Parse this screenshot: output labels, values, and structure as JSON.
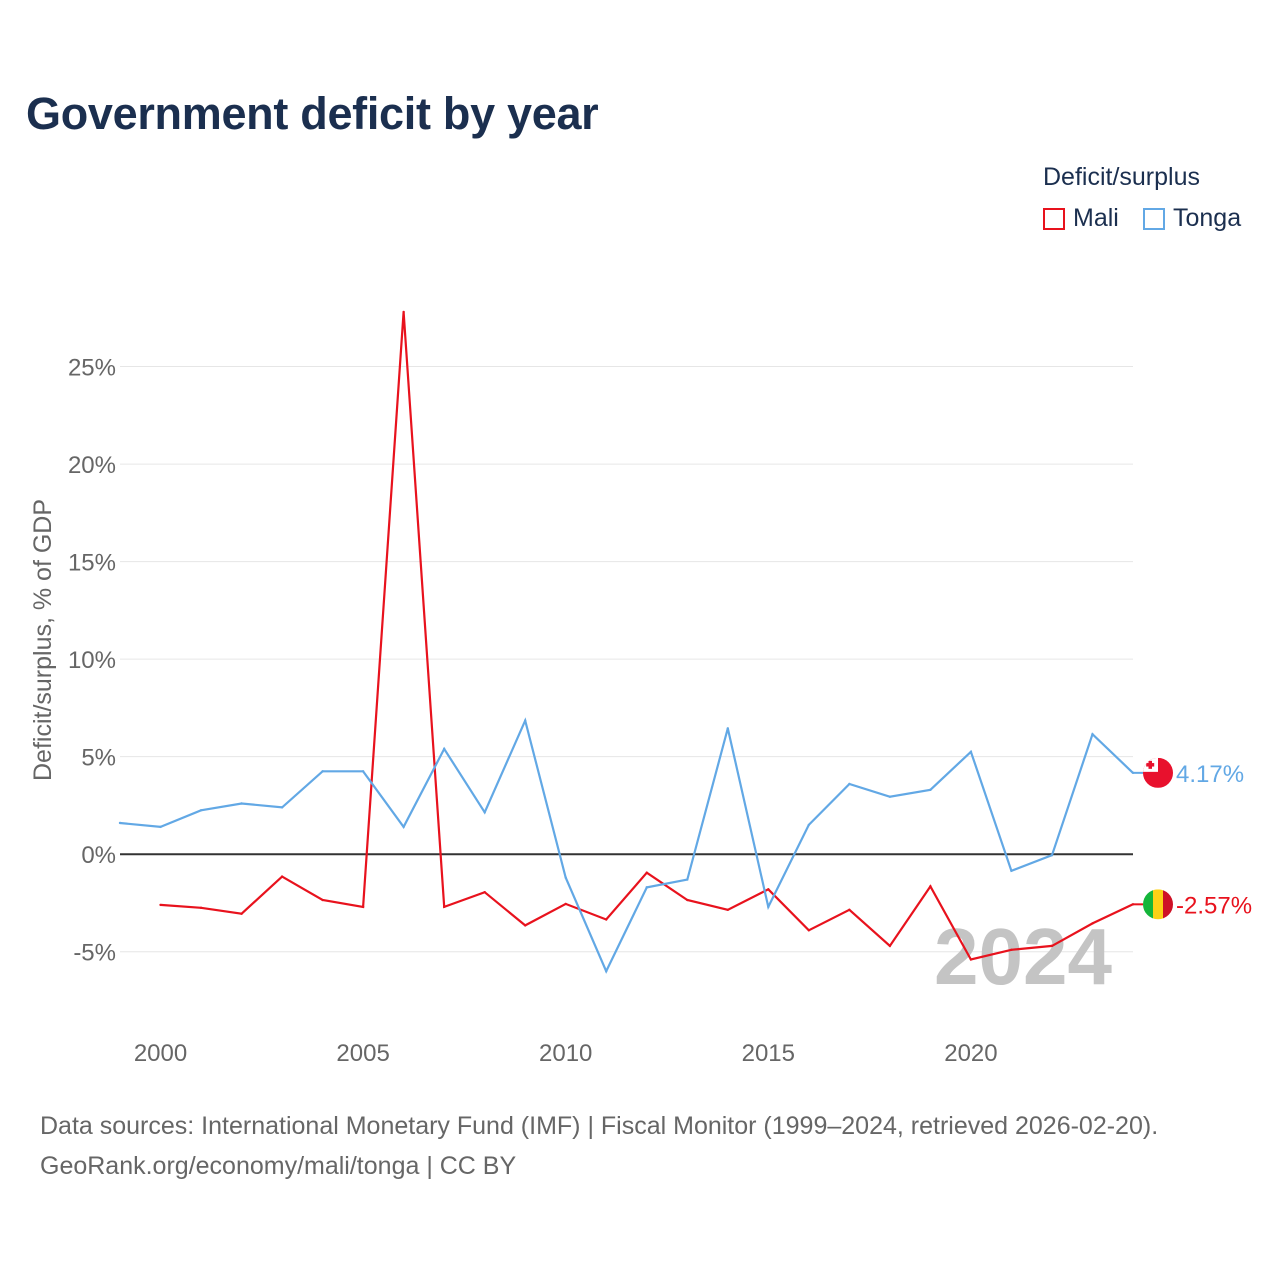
{
  "chart_data": {
    "type": "line",
    "title": "Government deficit by year",
    "ylabel": "Deficit/surplus, % of GDP",
    "xlabel": "",
    "xlim": [
      1999,
      2024
    ],
    "ylim": [
      -8.5,
      30
    ],
    "x_ticks": [
      2000,
      2005,
      2010,
      2015,
      2020
    ],
    "y_ticks": [
      -5,
      0,
      5,
      10,
      15,
      20,
      25
    ],
    "y_tick_labels": [
      "-5%",
      "0%",
      "5%",
      "10%",
      "15%",
      "20%",
      "25%"
    ],
    "x_tick_labels": [
      "2000",
      "2005",
      "2010",
      "2015",
      "2020"
    ],
    "legend_title": "Deficit/surplus",
    "legend_position": "top-right",
    "watermark_year": "2024",
    "series": [
      {
        "name": "Mali",
        "color": "#e8121d",
        "end_label": "-2.57%",
        "flag": "mali-flag",
        "x": [
          2000,
          2001,
          2002,
          2003,
          2004,
          2005,
          2006,
          2007,
          2008,
          2009,
          2010,
          2011,
          2012,
          2013,
          2014,
          2015,
          2016,
          2017,
          2018,
          2019,
          2020,
          2021,
          2022,
          2023,
          2024
        ],
        "values": [
          -2.6,
          -2.75,
          -3.05,
          -1.15,
          -2.35,
          -2.7,
          27.8,
          -2.7,
          -1.95,
          -3.65,
          -2.55,
          -3.35,
          -0.95,
          -2.35,
          -2.85,
          -1.8,
          -3.9,
          -2.85,
          -4.7,
          -1.65,
          -5.4,
          -4.9,
          -4.7,
          -3.55,
          -2.57
        ]
      },
      {
        "name": "Tonga",
        "color": "#62a8e5",
        "end_label": "4.17%",
        "flag": "tonga-flag",
        "x": [
          1999,
          2000,
          2001,
          2002,
          2003,
          2004,
          2005,
          2006,
          2007,
          2008,
          2009,
          2010,
          2011,
          2012,
          2013,
          2014,
          2015,
          2016,
          2017,
          2018,
          2019,
          2020,
          2021,
          2022,
          2023,
          2024
        ],
        "values": [
          1.6,
          1.4,
          2.25,
          2.6,
          2.4,
          4.25,
          4.25,
          1.4,
          5.4,
          2.15,
          6.85,
          -1.2,
          -6.0,
          -1.7,
          -1.3,
          6.45,
          -2.7,
          1.5,
          3.6,
          2.95,
          3.3,
          5.25,
          -0.85,
          -0.05,
          6.15,
          4.17
        ]
      }
    ]
  },
  "source": {
    "line1": "Data sources: International Monetary Fund (IMF) | Fiscal Monitor (1999–2024, retrieved 2026-02-20).",
    "line2": "GeoRank.org/economy/mali/tonga | CC BY"
  }
}
